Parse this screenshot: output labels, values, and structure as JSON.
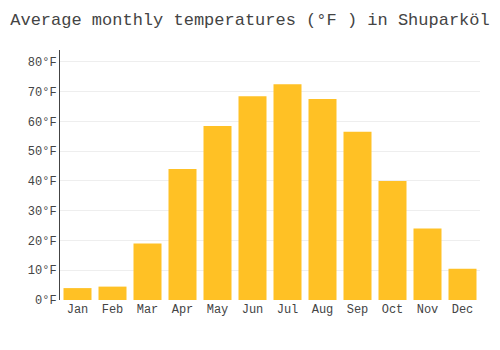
{
  "chart_data": {
    "type": "bar",
    "title": "Average monthly temperatures (°F ) in Shuparköl",
    "categories": [
      "Jan",
      "Feb",
      "Mar",
      "Apr",
      "May",
      "Jun",
      "Jul",
      "Aug",
      "Sep",
      "Oct",
      "Nov",
      "Dec"
    ],
    "values": [
      4.0,
      4.5,
      19.0,
      44.0,
      58.5,
      68.5,
      72.5,
      67.5,
      56.5,
      40.0,
      24.0,
      10.5
    ],
    "color": "#FFC125",
    "ylim": [
      0,
      84
    ],
    "yticks": [
      {
        "value": 0,
        "label": "0°F"
      },
      {
        "value": 10,
        "label": "10°F"
      },
      {
        "value": 20,
        "label": "20°F"
      },
      {
        "value": 30,
        "label": "30°F"
      },
      {
        "value": 40,
        "label": "40°F"
      },
      {
        "value": 50,
        "label": "50°F"
      },
      {
        "value": 60,
        "label": "60°F"
      },
      {
        "value": 70,
        "label": "70°F"
      },
      {
        "value": 80,
        "label": "80°F"
      }
    ],
    "grid": true
  }
}
